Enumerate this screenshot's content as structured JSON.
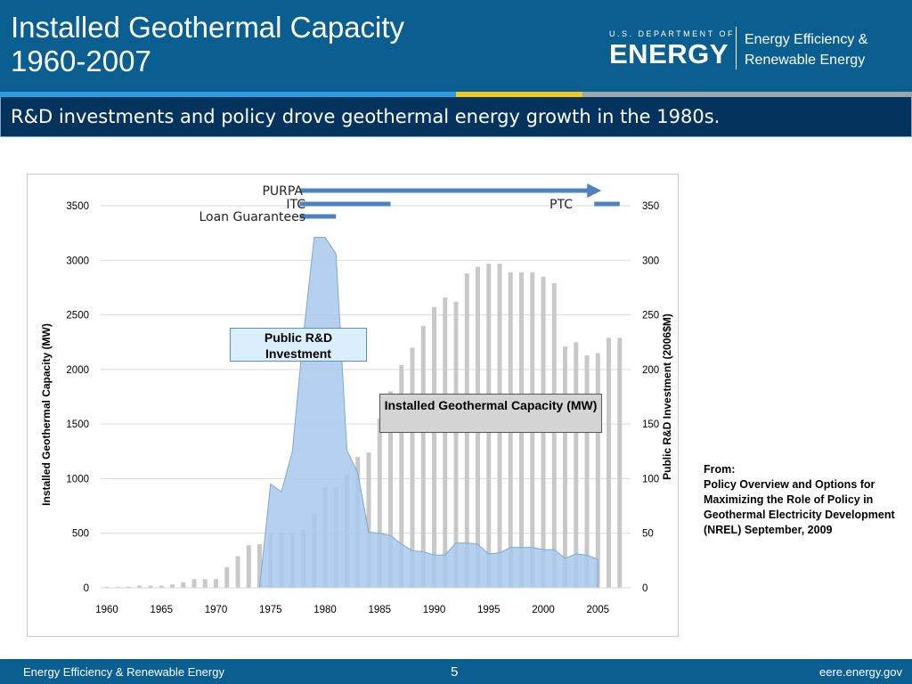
{
  "header": {
    "title_line1": "Installed Geothermal Capacity",
    "title_line2": "1960-2007",
    "doe_small": "U.S. DEPARTMENT OF",
    "doe_big": "ENERGY",
    "eere_line1": "Energy Efficiency &",
    "eere_line2": "Renewable Energy"
  },
  "subtitle": "R&D investments and policy drove geothermal energy growth in the 1980s.",
  "source": {
    "line1": "From:",
    "line2": "Policy Overview and Options for Maximizing the Role of Policy in Geothermal Electricity Development",
    "line3": "(NREL) September, 2009"
  },
  "footer": {
    "left": "Energy Efficiency & Renewable Energy",
    "page": "5",
    "right": "eere.energy.gov"
  },
  "colors": {
    "header": "#0a5f90",
    "subtitle_bar": "#04335e",
    "bars": "#c8c8c8",
    "area": "#a9c8ec",
    "policy": "#4f81bd"
  },
  "chart_data": {
    "type": "bar",
    "title": "",
    "ylabel": "Installed Geothermal Capacity (MW)",
    "y2label": "Public R&D Investment (2006$M)",
    "xlim": [
      1960,
      2007
    ],
    "ylim": [
      0,
      3500
    ],
    "y2lim": [
      0,
      350
    ],
    "x_ticks": [
      1960,
      1965,
      1970,
      1975,
      1980,
      1985,
      1990,
      1995,
      2000,
      2005
    ],
    "y_ticks": [
      0,
      500,
      1000,
      1500,
      2000,
      2500,
      3000,
      3500
    ],
    "y2_ticks": [
      0,
      50,
      100,
      150,
      200,
      250,
      300,
      350
    ],
    "grid": true,
    "series": [
      {
        "name": "Installed Geothermal Capacity (MW)",
        "type": "bar",
        "axis": "left",
        "x": [
          1960,
          1961,
          1962,
          1963,
          1964,
          1965,
          1966,
          1967,
          1968,
          1969,
          1970,
          1971,
          1972,
          1973,
          1974,
          1975,
          1976,
          1977,
          1978,
          1979,
          1980,
          1981,
          1982,
          1983,
          1984,
          1985,
          1986,
          1987,
          1988,
          1989,
          1990,
          1991,
          1992,
          1993,
          1994,
          1995,
          1996,
          1997,
          1998,
          1999,
          2000,
          2001,
          2002,
          2003,
          2004,
          2005,
          2006,
          2007
        ],
        "values": [
          10,
          10,
          10,
          20,
          20,
          20,
          30,
          50,
          80,
          80,
          80,
          190,
          290,
          390,
          400,
          500,
          500,
          500,
          530,
          680,
          920,
          920,
          1030,
          1200,
          1240,
          1550,
          1800,
          2040,
          2200,
          2400,
          2570,
          2660,
          2620,
          2880,
          2940,
          2970,
          2970,
          2890,
          2890,
          2890,
          2850,
          2790,
          2210,
          2250,
          2130,
          2150,
          2290,
          2290
        ]
      },
      {
        "name": "Public R&D Investment",
        "type": "area",
        "axis": "right",
        "x": [
          1974,
          1975,
          1976,
          1977,
          1978,
          1979,
          1980,
          1981,
          1982,
          1983,
          1984,
          1985,
          1986,
          1987,
          1988,
          1989,
          1990,
          1991,
          1992,
          1993,
          1994,
          1995,
          1996,
          1997,
          1998,
          1999,
          2000,
          2001,
          2002,
          2003,
          2004,
          2005
        ],
        "values": [
          0,
          95,
          88,
          125,
          230,
          321,
          321,
          306,
          126,
          105,
          51,
          50,
          48,
          40,
          34,
          33,
          30,
          30,
          41,
          41,
          40,
          31,
          32,
          37,
          37,
          37,
          35,
          35,
          27,
          31,
          30,
          26
        ]
      }
    ],
    "policies": [
      {
        "label": "PURPA",
        "start": 1978,
        "end": 2005,
        "arrow": true
      },
      {
        "label": "ITC",
        "start": 1978,
        "end": 1986
      },
      {
        "label": "Loan Guarantees",
        "start": 1978,
        "end": 1981
      },
      {
        "label": "PTC",
        "start": 2005,
        "end": 2007
      }
    ],
    "annotations": [
      {
        "text": "Public R&D Investment"
      },
      {
        "text": "Installed Geothermal Capacity (MW)"
      }
    ]
  }
}
